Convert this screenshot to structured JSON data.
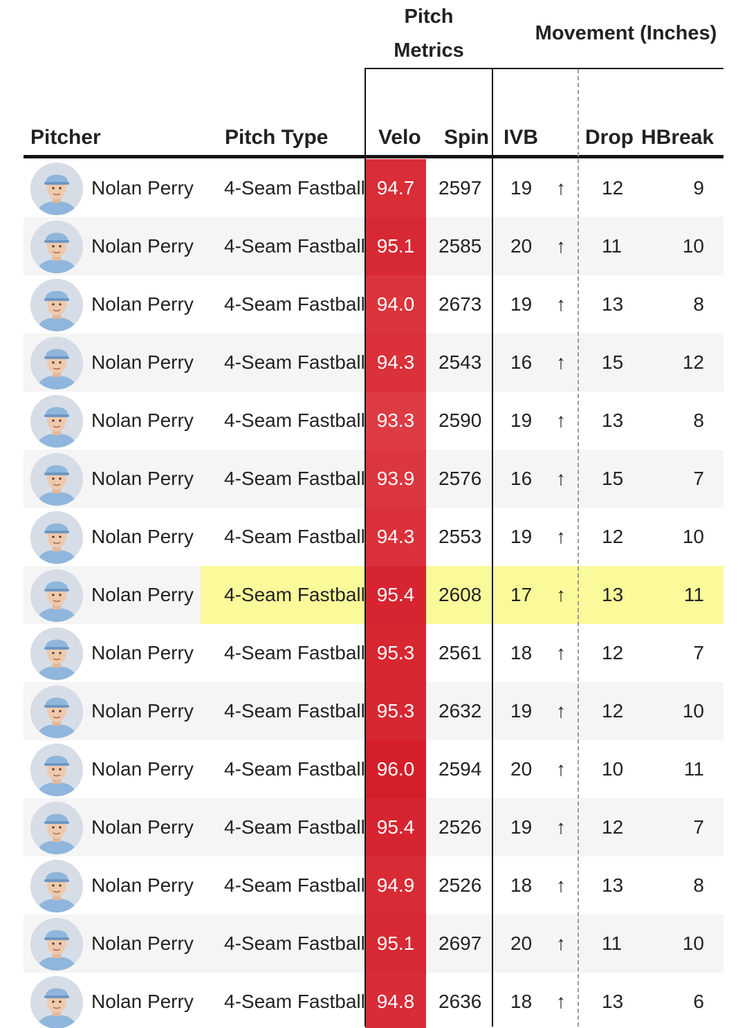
{
  "headers": {
    "pitch_metrics": [
      "Pitch",
      "Metrics"
    ],
    "movement": "Movement (Inches)",
    "pitcher": "Pitcher",
    "pitch_type": "Pitch Type",
    "velo": "Velo",
    "spin": "Spin",
    "ivb": "IVB",
    "drop": "Drop",
    "hbreak": "HBreak"
  },
  "colors": {
    "velo_base": "#d41f2a",
    "highlight": "#fafa9a",
    "alt_row": "#f5f5f5"
  },
  "ivb_arrow": "↑",
  "highlighted_row": 7,
  "rows": [
    {
      "pitcher": "Nolan Perry",
      "pitch_type": "4-Seam Fastball",
      "velo": "94.7",
      "spin": "2597",
      "ivb": "19",
      "drop": "12",
      "hbreak": "9"
    },
    {
      "pitcher": "Nolan Perry",
      "pitch_type": "4-Seam Fastball",
      "velo": "95.1",
      "spin": "2585",
      "ivb": "20",
      "drop": "11",
      "hbreak": "10"
    },
    {
      "pitcher": "Nolan Perry",
      "pitch_type": "4-Seam Fastball",
      "velo": "94.0",
      "spin": "2673",
      "ivb": "19",
      "drop": "13",
      "hbreak": "8"
    },
    {
      "pitcher": "Nolan Perry",
      "pitch_type": "4-Seam Fastball",
      "velo": "94.3",
      "spin": "2543",
      "ivb": "16",
      "drop": "15",
      "hbreak": "12"
    },
    {
      "pitcher": "Nolan Perry",
      "pitch_type": "4-Seam Fastball",
      "velo": "93.3",
      "spin": "2590",
      "ivb": "19",
      "drop": "13",
      "hbreak": "8"
    },
    {
      "pitcher": "Nolan Perry",
      "pitch_type": "4-Seam Fastball",
      "velo": "93.9",
      "spin": "2576",
      "ivb": "16",
      "drop": "15",
      "hbreak": "7"
    },
    {
      "pitcher": "Nolan Perry",
      "pitch_type": "4-Seam Fastball",
      "velo": "94.3",
      "spin": "2553",
      "ivb": "19",
      "drop": "12",
      "hbreak": "10"
    },
    {
      "pitcher": "Nolan Perry",
      "pitch_type": "4-Seam Fastball",
      "velo": "95.4",
      "spin": "2608",
      "ivb": "17",
      "drop": "13",
      "hbreak": "11"
    },
    {
      "pitcher": "Nolan Perry",
      "pitch_type": "4-Seam Fastball",
      "velo": "95.3",
      "spin": "2561",
      "ivb": "18",
      "drop": "12",
      "hbreak": "7"
    },
    {
      "pitcher": "Nolan Perry",
      "pitch_type": "4-Seam Fastball",
      "velo": "95.3",
      "spin": "2632",
      "ivb": "19",
      "drop": "12",
      "hbreak": "10"
    },
    {
      "pitcher": "Nolan Perry",
      "pitch_type": "4-Seam Fastball",
      "velo": "96.0",
      "spin": "2594",
      "ivb": "20",
      "drop": "10",
      "hbreak": "11"
    },
    {
      "pitcher": "Nolan Perry",
      "pitch_type": "4-Seam Fastball",
      "velo": "95.4",
      "spin": "2526",
      "ivb": "19",
      "drop": "12",
      "hbreak": "7"
    },
    {
      "pitcher": "Nolan Perry",
      "pitch_type": "4-Seam Fastball",
      "velo": "94.9",
      "spin": "2526",
      "ivb": "18",
      "drop": "13",
      "hbreak": "8"
    },
    {
      "pitcher": "Nolan Perry",
      "pitch_type": "4-Seam Fastball",
      "velo": "95.1",
      "spin": "2697",
      "ivb": "20",
      "drop": "11",
      "hbreak": "10"
    },
    {
      "pitcher": "Nolan Perry",
      "pitch_type": "4-Seam Fastball",
      "velo": "94.8",
      "spin": "2636",
      "ivb": "18",
      "drop": "13",
      "hbreak": "6"
    }
  ]
}
